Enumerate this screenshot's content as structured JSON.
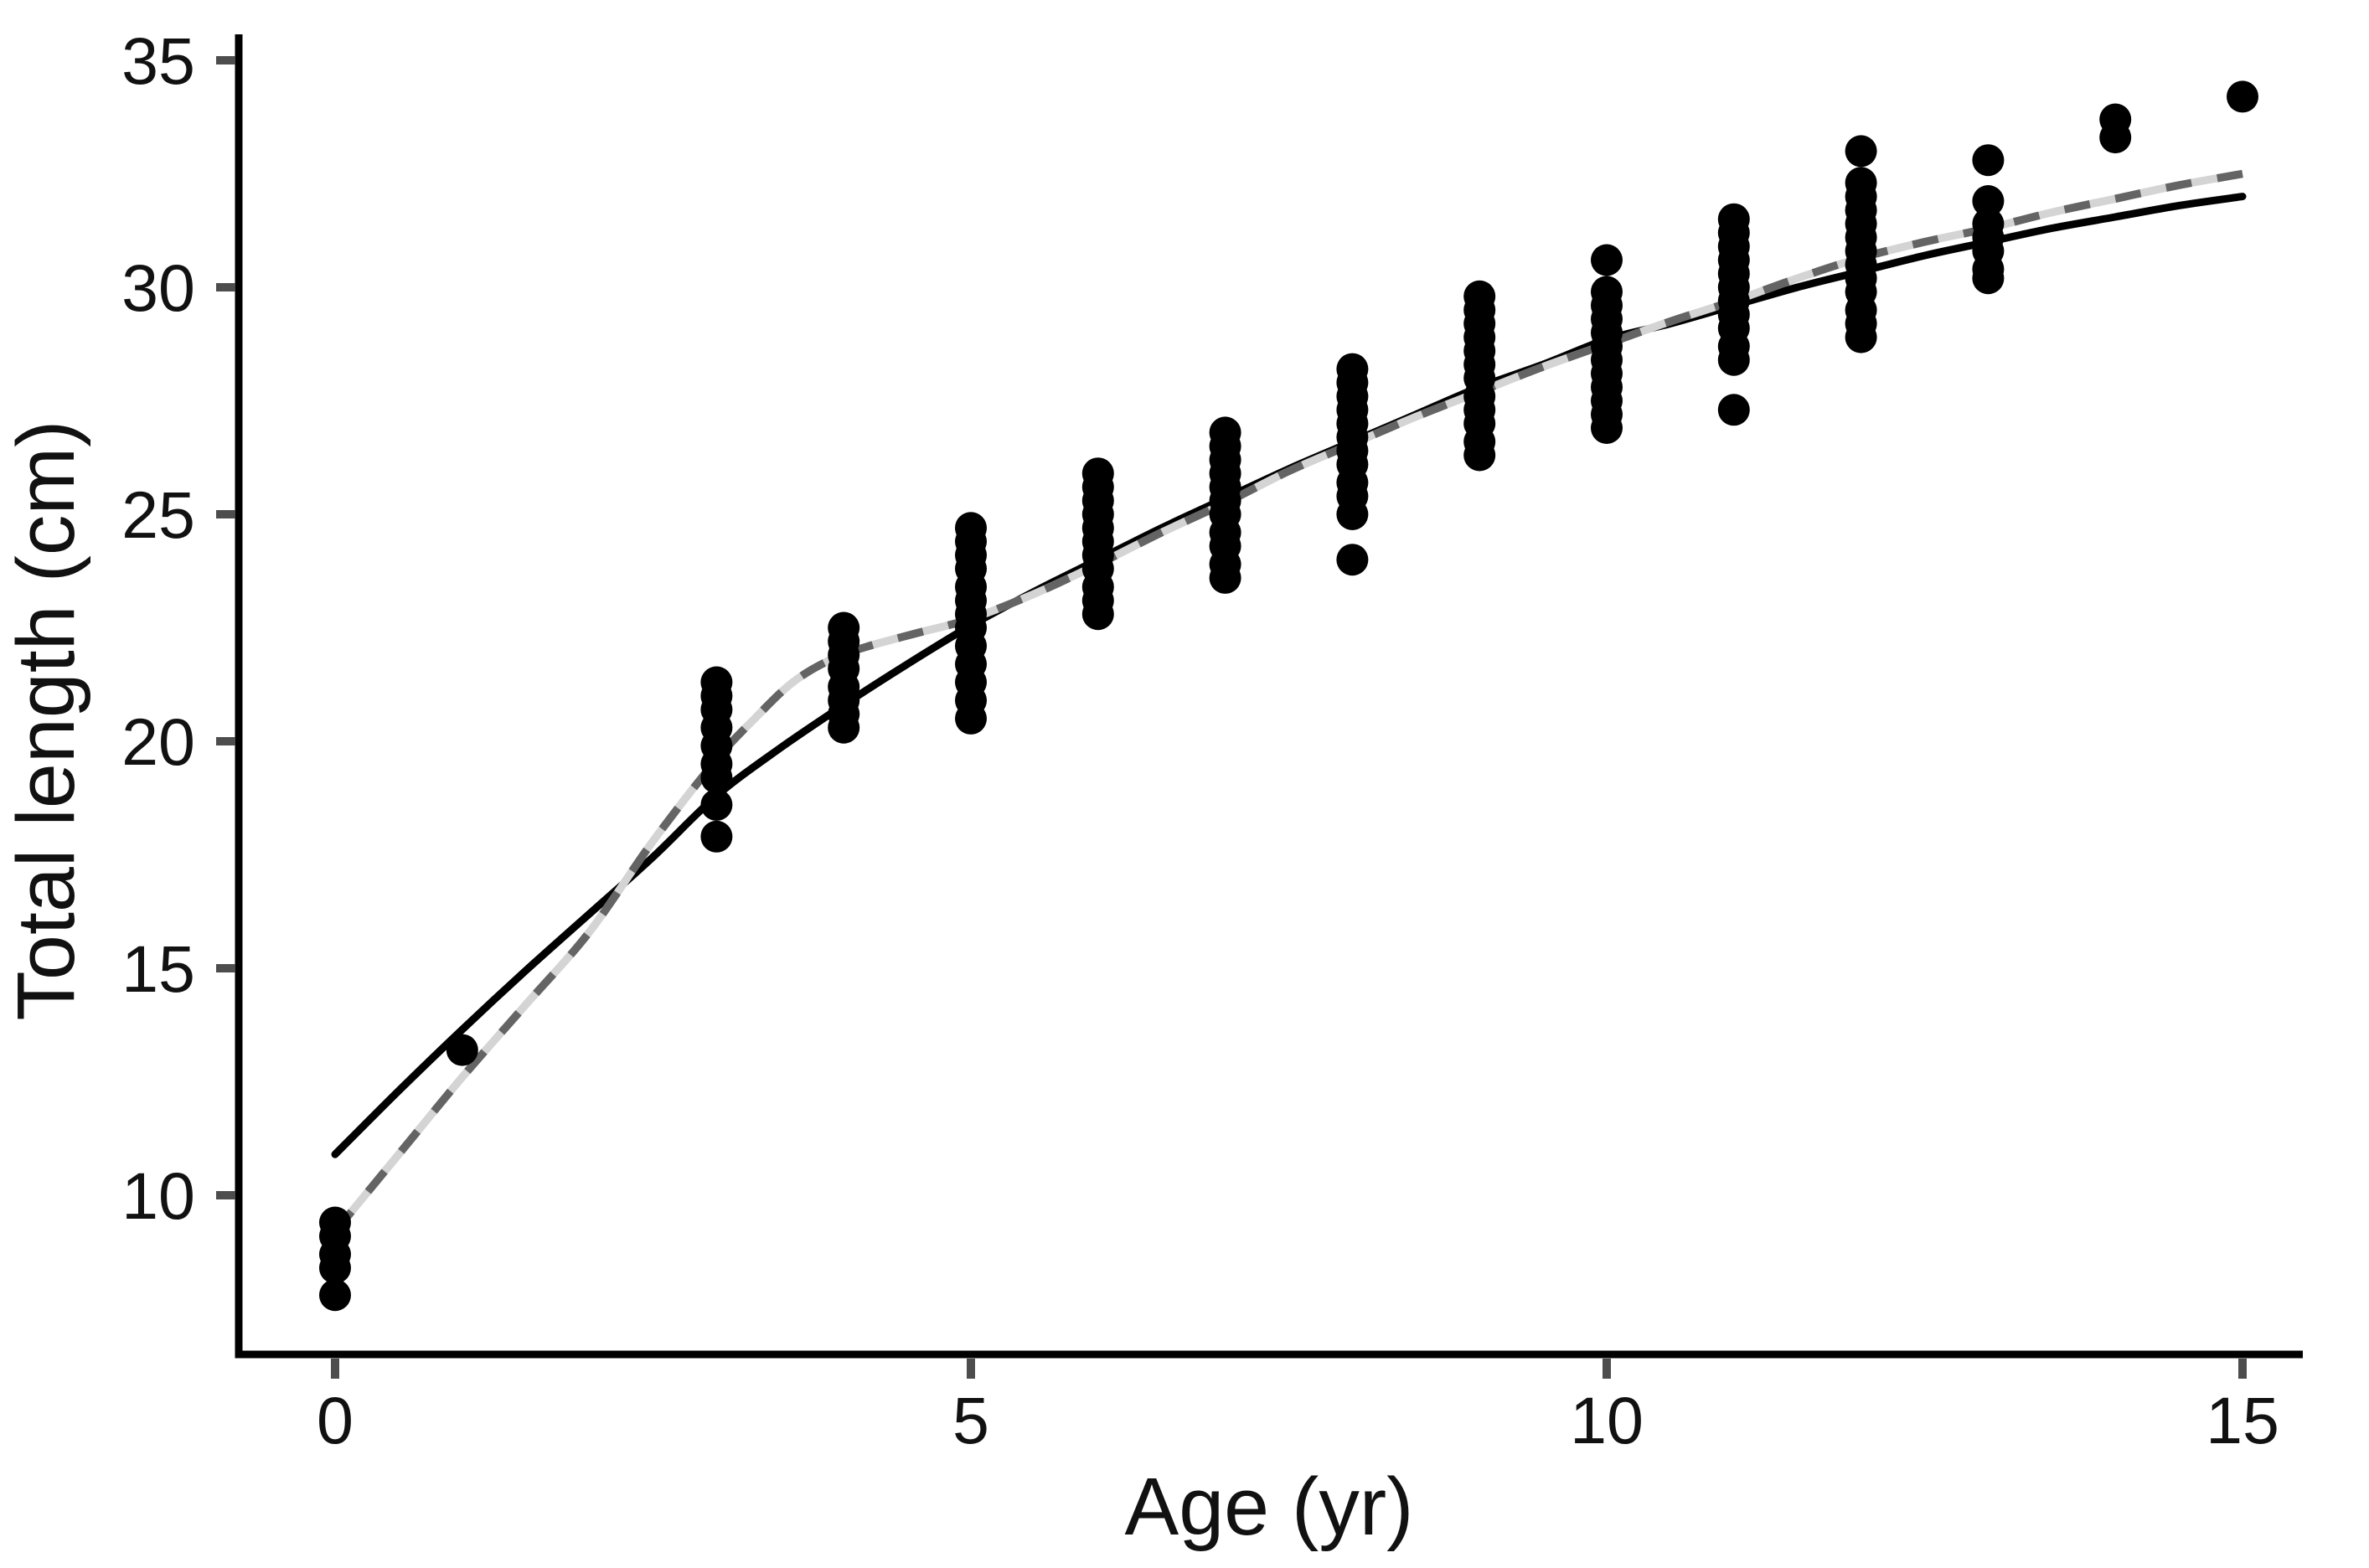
{
  "chart_data": {
    "type": "scatter",
    "title": "",
    "xlabel": "Age (yr)",
    "ylabel": "Total length (cm)",
    "xlim": [
      -0.76,
      15.45
    ],
    "ylim": [
      6.45,
      35.5
    ],
    "x_ticks": [
      0,
      5,
      10,
      15
    ],
    "y_ticks": [
      10,
      15,
      20,
      25,
      30,
      35
    ],
    "grid": false,
    "legend": "none",
    "marker": "filled-circle",
    "points": [
      {
        "age": 0,
        "lengths": [
          9.4,
          9.1,
          8.7,
          8.4,
          7.8
        ]
      },
      {
        "age": 1,
        "lengths": [
          13.2
        ]
      },
      {
        "age": 3,
        "lengths": [
          21.3,
          21.0,
          20.7,
          20.3,
          19.9,
          19.5,
          19.2,
          18.6,
          17.9
        ]
      },
      {
        "age": 4,
        "lengths": [
          22.5,
          22.2,
          21.9,
          21.6,
          21.2,
          20.9,
          20.6,
          20.3
        ]
      },
      {
        "age": 5,
        "lengths": [
          24.7,
          24.4,
          24.1,
          23.8,
          23.4,
          23.1,
          22.8,
          22.5,
          22.1,
          21.7,
          21.3,
          20.9,
          20.5
        ]
      },
      {
        "age": 6,
        "lengths": [
          25.9,
          25.6,
          25.3,
          25.0,
          24.7,
          24.4,
          24.1,
          23.8,
          23.4,
          23.1,
          22.8
        ]
      },
      {
        "age": 7,
        "lengths": [
          26.8,
          26.5,
          26.2,
          25.9,
          25.6,
          25.3,
          25.0,
          24.6,
          24.3,
          23.9,
          23.6
        ]
      },
      {
        "age": 8,
        "lengths": [
          28.2,
          27.9,
          27.6,
          27.3,
          27.0,
          26.7,
          26.4,
          26.1,
          25.7,
          25.4,
          25.0,
          24.0
        ]
      },
      {
        "age": 9,
        "lengths": [
          29.8,
          29.5,
          29.2,
          28.9,
          28.6,
          28.3,
          28.0,
          27.6,
          27.3,
          27.0,
          26.6,
          26.3
        ]
      },
      {
        "age": 10,
        "lengths": [
          30.6,
          29.9,
          29.6,
          29.3,
          29.0,
          28.7,
          28.4,
          28.1,
          27.8,
          27.5,
          27.2,
          26.9
        ]
      },
      {
        "age": 11,
        "lengths": [
          31.5,
          31.2,
          30.9,
          30.6,
          30.3,
          30.0,
          29.7,
          29.4,
          29.1,
          28.7,
          28.4,
          27.3
        ]
      },
      {
        "age": 12,
        "lengths": [
          33.0,
          32.3,
          32.0,
          31.7,
          31.4,
          31.1,
          30.8,
          30.5,
          30.2,
          29.9,
          29.5,
          29.2,
          28.9
        ]
      },
      {
        "age": 13,
        "lengths": [
          32.8,
          31.9,
          31.4,
          31.1,
          30.8,
          30.4,
          30.2
        ]
      },
      {
        "age": 14,
        "lengths": [
          33.7,
          33.3
        ]
      },
      {
        "age": 15,
        "lengths": [
          34.2
        ]
      }
    ],
    "curves": [
      {
        "id": "solid-black-curve",
        "style": "solid",
        "color": "#000000",
        "points": [
          [
            0,
            10.9
          ],
          [
            0.5,
            12.3
          ],
          [
            1,
            13.65
          ],
          [
            1.5,
            14.95
          ],
          [
            2,
            16.2
          ],
          [
            2.5,
            17.45
          ],
          [
            3,
            18.8
          ],
          [
            3.5,
            19.85
          ],
          [
            4,
            20.8
          ],
          [
            4.5,
            21.7
          ],
          [
            5,
            22.55
          ],
          [
            5.5,
            23.3
          ],
          [
            6,
            24.0
          ],
          [
            6.5,
            24.7
          ],
          [
            7,
            25.35
          ],
          [
            7.5,
            26.0
          ],
          [
            8,
            26.6
          ],
          [
            8.5,
            27.2
          ],
          [
            9,
            27.8
          ],
          [
            9.5,
            28.3
          ],
          [
            10,
            28.85
          ],
          [
            10.5,
            29.2
          ],
          [
            11,
            29.6
          ],
          [
            11.5,
            30.0
          ],
          [
            12,
            30.35
          ],
          [
            12.5,
            30.7
          ],
          [
            13,
            31.0
          ],
          [
            13.5,
            31.3
          ],
          [
            14,
            31.55
          ],
          [
            14.5,
            31.8
          ],
          [
            15,
            32.0
          ]
        ]
      },
      {
        "id": "gray-dashed-curve",
        "style": "two-tone-dashed",
        "dash_dark": "#646464",
        "dash_light": "#d4d4d4",
        "points": [
          [
            0,
            9.2
          ],
          [
            0.5,
            10.9
          ],
          [
            1,
            12.6
          ],
          [
            1.5,
            14.2
          ],
          [
            2,
            15.8
          ],
          [
            2.5,
            17.8
          ],
          [
            3,
            19.6
          ],
          [
            3.3,
            20.5
          ],
          [
            3.6,
            21.3
          ],
          [
            3.9,
            21.8
          ],
          [
            4.2,
            22.1
          ],
          [
            4.6,
            22.4
          ],
          [
            5,
            22.7
          ],
          [
            5.5,
            23.25
          ],
          [
            6,
            23.9
          ],
          [
            6.5,
            24.6
          ],
          [
            7,
            25.25
          ],
          [
            7.5,
            25.95
          ],
          [
            8,
            26.55
          ],
          [
            8.5,
            27.15
          ],
          [
            9,
            27.7
          ],
          [
            9.5,
            28.25
          ],
          [
            10,
            28.75
          ],
          [
            10.5,
            29.25
          ],
          [
            11,
            29.7
          ],
          [
            11.5,
            30.2
          ],
          [
            12,
            30.65
          ],
          [
            12.5,
            31.0
          ],
          [
            13,
            31.3
          ],
          [
            13.5,
            31.65
          ],
          [
            14,
            31.95
          ],
          [
            14.5,
            32.25
          ],
          [
            15,
            32.5
          ]
        ]
      }
    ],
    "colors": {
      "background": "#ffffff",
      "axis_line": "#000000",
      "tick_mark": "#4d4d4d",
      "text": "#111111",
      "point": "#000000"
    }
  }
}
